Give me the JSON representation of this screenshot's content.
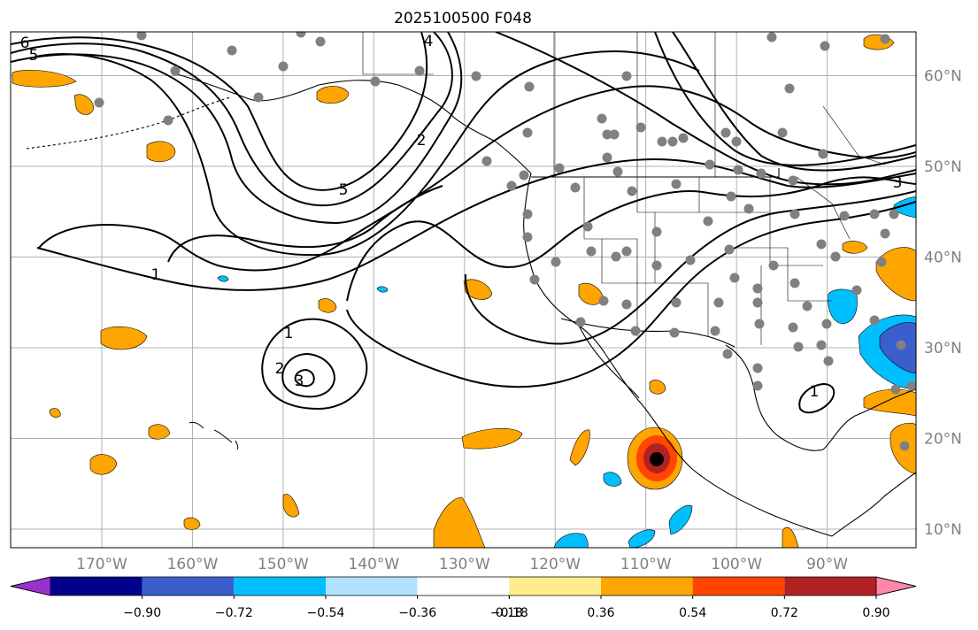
{
  "title": "2025100500 F048",
  "map": {
    "lon_range": [
      -180,
      -80
    ],
    "lat_range": [
      8,
      65
    ],
    "lon_ticks": [
      {
        "value": -170,
        "label": "170°W"
      },
      {
        "value": -160,
        "label": "160°W"
      },
      {
        "value": -150,
        "label": "150°W"
      },
      {
        "value": -140,
        "label": "140°W"
      },
      {
        "value": -130,
        "label": "130°W"
      },
      {
        "value": -120,
        "label": "120°W"
      },
      {
        "value": -110,
        "label": "110°W"
      },
      {
        "value": -100,
        "label": "100°W"
      },
      {
        "value": -90,
        "label": "90°W"
      }
    ],
    "lat_ticks": [
      {
        "value": 10,
        "label": "10°N"
      },
      {
        "value": 20,
        "label": "20°N"
      },
      {
        "value": 30,
        "label": "30°N"
      },
      {
        "value": 40,
        "label": "40°N"
      },
      {
        "value": 50,
        "label": "50°N"
      },
      {
        "value": 60,
        "label": "60°N"
      }
    ],
    "contour_labels": [
      "1",
      "1",
      "1",
      "2",
      "2",
      "3",
      "3",
      "4",
      "5",
      "5",
      "6"
    ],
    "stations_count": 95
  },
  "colorbar": {
    "ticks": [
      "−0.90",
      "−0.72",
      "−0.54",
      "−0.36",
      "−0.18",
      "0.18",
      "0.36",
      "0.54",
      "0.72",
      "0.90"
    ],
    "colors": [
      "#9932cc",
      "#00008b",
      "#3a5fcd",
      "#00bfff",
      "#b0e2ff",
      "#ffffff",
      "#ffec8b",
      "#ffa500",
      "#ff4500",
      "#b22222",
      "#ff88aa"
    ]
  },
  "colors": {
    "positive_fill": "#ffa500",
    "negative_fill": "#00bfff",
    "station": "#808080",
    "grid": "#b0b0b0"
  }
}
